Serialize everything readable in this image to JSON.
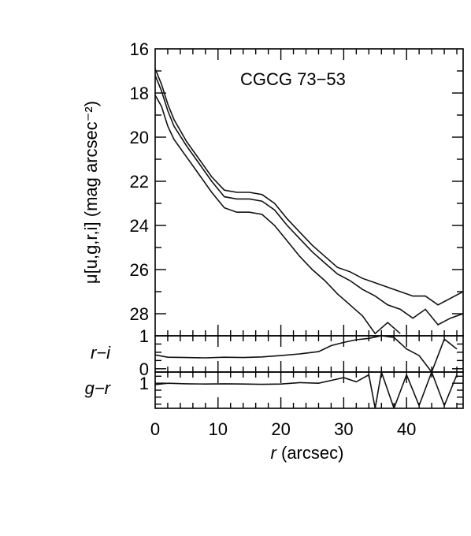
{
  "chart_data": {
    "type": "line",
    "annotation": "CGCG 73−53",
    "xlabel_italic": "r",
    "xlabel_rest": " (arcsec)",
    "xlim": [
      0,
      49
    ],
    "x_ticks": [
      0,
      10,
      20,
      30,
      40
    ],
    "panels": {
      "profile": {
        "ylabel": "μ[u,g,r,i] (mag arcsec⁻²)",
        "ylim": [
          16,
          29
        ],
        "y_inverted": true,
        "y_ticks": [
          16,
          18,
          20,
          22,
          24,
          26,
          28
        ],
        "series": [
          {
            "values": [
              [
                0,
                16.9
              ],
              [
                1,
                17.6
              ],
              [
                2,
                18.5
              ],
              [
                3,
                19.2
              ],
              [
                5,
                20.2
              ],
              [
                7,
                21.0
              ],
              [
                9,
                21.8
              ],
              [
                11,
                22.4
              ],
              [
                13,
                22.5
              ],
              [
                15,
                22.5
              ],
              [
                17,
                22.6
              ],
              [
                19,
                23.0
              ],
              [
                21,
                23.7
              ],
              [
                23,
                24.3
              ],
              [
                25,
                24.9
              ],
              [
                27,
                25.4
              ],
              [
                29,
                25.9
              ],
              [
                31,
                26.1
              ],
              [
                33,
                26.4
              ],
              [
                35,
                26.6
              ],
              [
                37,
                26.8
              ],
              [
                39,
                27.0
              ],
              [
                41,
                27.2
              ],
              [
                43,
                27.2
              ],
              [
                45,
                27.6
              ],
              [
                47,
                27.3
              ],
              [
                49,
                27.0
              ]
            ]
          },
          {
            "values": [
              [
                0,
                17.2
              ],
              [
                1,
                17.9
              ],
              [
                2,
                18.8
              ],
              [
                3,
                19.5
              ],
              [
                5,
                20.4
              ],
              [
                7,
                21.2
              ],
              [
                9,
                22.0
              ],
              [
                11,
                22.7
              ],
              [
                13,
                22.8
              ],
              [
                15,
                22.8
              ],
              [
                17,
                22.9
              ],
              [
                19,
                23.3
              ],
              [
                21,
                24.0
              ],
              [
                23,
                24.6
              ],
              [
                25,
                25.2
              ],
              [
                27,
                25.7
              ],
              [
                29,
                26.2
              ],
              [
                31,
                26.5
              ],
              [
                33,
                26.9
              ],
              [
                35,
                27.2
              ],
              [
                37,
                27.6
              ],
              [
                39,
                27.8
              ],
              [
                41,
                28.2
              ],
              [
                43,
                27.8
              ],
              [
                45,
                28.5
              ],
              [
                47,
                28.2
              ],
              [
                49,
                28.0
              ]
            ]
          },
          {
            "values": [
              [
                0,
                18.1
              ],
              [
                1,
                18.6
              ],
              [
                2,
                19.5
              ],
              [
                3,
                20.1
              ],
              [
                5,
                20.9
              ],
              [
                7,
                21.7
              ],
              [
                9,
                22.5
              ],
              [
                11,
                23.2
              ],
              [
                13,
                23.4
              ],
              [
                15,
                23.4
              ],
              [
                17,
                23.5
              ],
              [
                19,
                24.0
              ],
              [
                21,
                24.7
              ],
              [
                23,
                25.4
              ],
              [
                25,
                26.0
              ],
              [
                27,
                26.5
              ],
              [
                29,
                27.1
              ],
              [
                31,
                27.6
              ],
              [
                33,
                28.1
              ],
              [
                35,
                28.9
              ],
              [
                37,
                28.4
              ],
              [
                39,
                28.9
              ]
            ]
          }
        ]
      },
      "r_minus_i": {
        "ylabel": "r−i",
        "ylim": [
          -0.1,
          1.0
        ],
        "y_ticks": [
          0,
          1
        ],
        "series": [
          {
            "values": [
              [
                0,
                0.42
              ],
              [
                2,
                0.35
              ],
              [
                5,
                0.34
              ],
              [
                8,
                0.33
              ],
              [
                11,
                0.35
              ],
              [
                14,
                0.34
              ],
              [
                17,
                0.36
              ],
              [
                20,
                0.4
              ],
              [
                23,
                0.45
              ],
              [
                26,
                0.52
              ],
              [
                28,
                0.7
              ],
              [
                30,
                0.8
              ],
              [
                32,
                0.88
              ],
              [
                34,
                0.92
              ],
              [
                36,
                1.0
              ],
              [
                38,
                0.95
              ],
              [
                40,
                0.6
              ],
              [
                42,
                0.4
              ],
              [
                44,
                -0.1
              ],
              [
                46,
                0.9
              ],
              [
                48,
                0.6
              ]
            ]
          }
        ]
      },
      "g_minus_r": {
        "ylabel": "g−r",
        "ylim": [
          0.1,
          1.4
        ],
        "y_ticks": [
          1
        ],
        "series": [
          {
            "values": [
              [
                0,
                0.95
              ],
              [
                2,
                1.0
              ],
              [
                5,
                0.98
              ],
              [
                8,
                0.97
              ],
              [
                11,
                0.98
              ],
              [
                14,
                0.97
              ],
              [
                17,
                0.96
              ],
              [
                20,
                0.97
              ],
              [
                23,
                1.02
              ],
              [
                26,
                1.0
              ],
              [
                28,
                1.1
              ],
              [
                30,
                1.2
              ],
              [
                32,
                1.05
              ],
              [
                34,
                1.3
              ],
              [
                35,
                0.1
              ],
              [
                36,
                1.4
              ],
              [
                38,
                0.1
              ],
              [
                40,
                1.3
              ],
              [
                42,
                0.2
              ],
              [
                44,
                1.4
              ],
              [
                46,
                0.2
              ],
              [
                48,
                1.3
              ]
            ]
          }
        ]
      }
    }
  }
}
